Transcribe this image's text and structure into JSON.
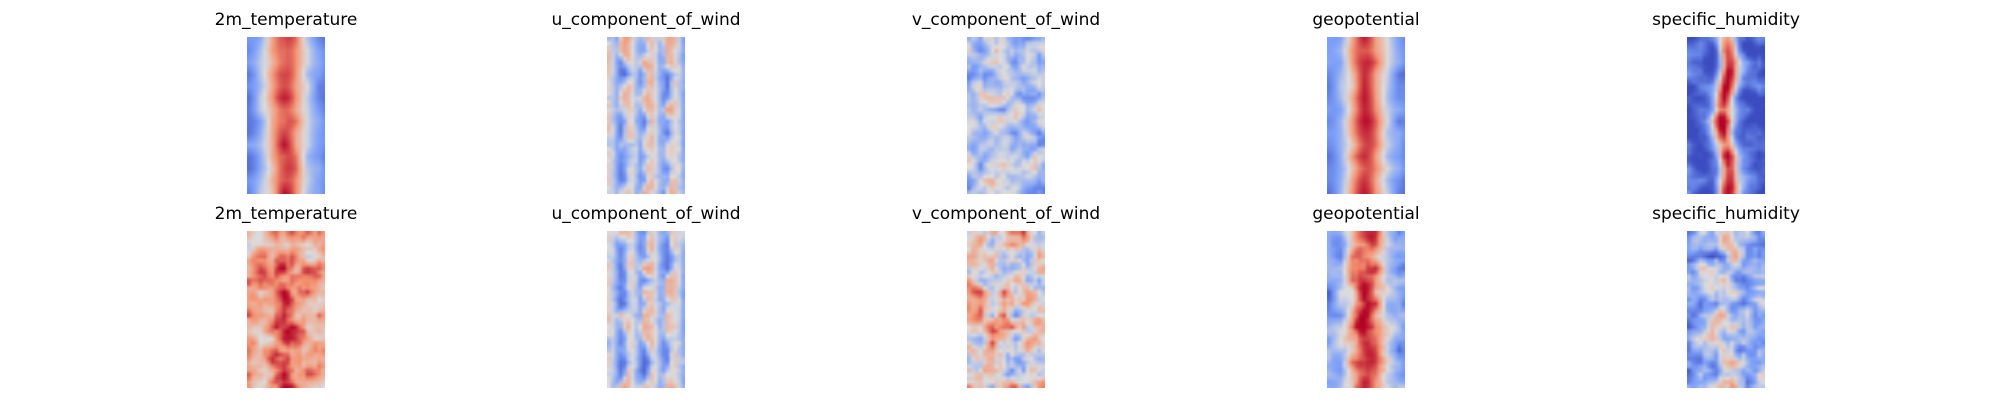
{
  "chart_data": [
    {
      "type": "heatmap",
      "title": "2m_temperature",
      "colormap": "coolwarm",
      "axes": "off",
      "pattern": "warm-band"
    },
    {
      "type": "heatmap",
      "title": "u_component_of_wind",
      "colormap": "coolwarm",
      "axes": "off",
      "pattern": "streaks"
    },
    {
      "type": "heatmap",
      "title": "v_component_of_wind",
      "colormap": "coolwarm",
      "axes": "off",
      "pattern": "cool-noise"
    },
    {
      "type": "heatmap",
      "title": "geopotential",
      "colormap": "coolwarm",
      "axes": "off",
      "pattern": "warm-band"
    },
    {
      "type": "heatmap",
      "title": "specific_humidity",
      "colormap": "coolwarm",
      "axes": "off",
      "pattern": "narrow-band"
    },
    {
      "type": "heatmap",
      "title": "2m_temperature",
      "colormap": "coolwarm",
      "axes": "off",
      "pattern": "warm-speckle"
    },
    {
      "type": "heatmap",
      "title": "u_component_of_wind",
      "colormap": "coolwarm",
      "axes": "off",
      "pattern": "streaks"
    },
    {
      "type": "heatmap",
      "title": "v_component_of_wind",
      "colormap": "coolwarm",
      "axes": "off",
      "pattern": "mixed-noise"
    },
    {
      "type": "heatmap",
      "title": "geopotential",
      "colormap": "coolwarm",
      "axes": "off",
      "pattern": "warm-band-noisy"
    },
    {
      "type": "heatmap",
      "title": "specific_humidity",
      "colormap": "coolwarm",
      "axes": "off",
      "pattern": "cool-speckle"
    }
  ]
}
